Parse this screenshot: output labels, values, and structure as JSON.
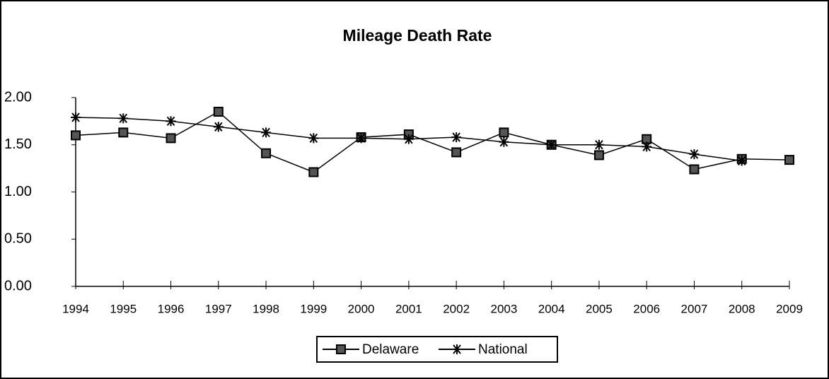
{
  "chart_data": {
    "type": "line",
    "title": "Mileage Death Rate",
    "categories": [
      "1994",
      "1995",
      "1996",
      "1997",
      "1998",
      "1999",
      "2000",
      "2001",
      "2002",
      "2003",
      "2004",
      "2005",
      "2006",
      "2007",
      "2008",
      "2009"
    ],
    "series": [
      {
        "name": "Delaware",
        "color": "#000000",
        "marker": "square",
        "values": [
          1.6,
          1.63,
          1.57,
          1.85,
          1.41,
          1.21,
          1.58,
          1.61,
          1.42,
          1.63,
          1.5,
          1.39,
          1.56,
          1.24,
          1.35,
          1.34
        ]
      },
      {
        "name": "National",
        "color": "#000000",
        "marker": "asterisk",
        "values": [
          1.79,
          1.78,
          1.75,
          1.69,
          1.63,
          1.57,
          1.57,
          1.56,
          1.58,
          1.53,
          1.5,
          1.5,
          1.48,
          1.4,
          1.33,
          null
        ]
      }
    ],
    "ylim": [
      0,
      2
    ],
    "yticks": [
      {
        "value": 0,
        "label": "0.00"
      },
      {
        "value": 0.5,
        "label": "0.50"
      },
      {
        "value": 1,
        "label": "1.00"
      },
      {
        "value": 1.5,
        "label": "1.50"
      },
      {
        "value": 2,
        "label": "2.00"
      }
    ],
    "legend": "bottom"
  }
}
